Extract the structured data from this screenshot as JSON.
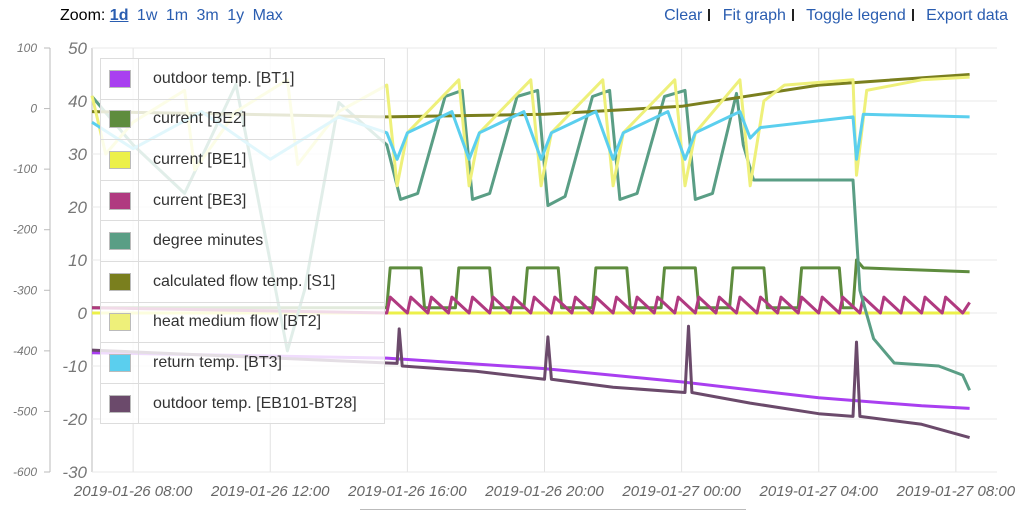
{
  "header": {
    "zoom_label": "Zoom:",
    "zoom_options": [
      "1d",
      "1w",
      "1m",
      "3m",
      "1y",
      "Max"
    ],
    "selected_zoom": "1d",
    "actions": [
      "Clear",
      "Fit graph",
      "Toggle legend",
      "Export data"
    ]
  },
  "chart_data": {
    "type": "line",
    "x_unit": "hours since 2019-01-26 00:00",
    "xlim": [
      6.8,
      33.2
    ],
    "x_ticks": [
      {
        "h": 8,
        "label": "2019-01-26 08:00"
      },
      {
        "h": 12,
        "label": "2019-01-26 12:00"
      },
      {
        "h": 16,
        "label": "2019-01-26 16:00"
      },
      {
        "h": 20,
        "label": "2019-01-26 20:00"
      },
      {
        "h": 24,
        "label": "2019-01-27 00:00"
      },
      {
        "h": 28,
        "label": "2019-01-27 04:00"
      },
      {
        "h": 32,
        "label": "2019-01-27 08:00"
      }
    ],
    "y_left": {
      "ylim": [
        -600,
        100
      ],
      "ticks": [
        "100",
        "0",
        "-100",
        "-200",
        "-300",
        "-400",
        "-500",
        "-600"
      ]
    },
    "y_right": {
      "ylim": [
        -30,
        50
      ],
      "ticks": [
        "50",
        "40",
        "30",
        "20",
        "10",
        "0",
        "-10",
        "-20",
        "-30"
      ]
    },
    "grid": true,
    "legend_placement": "top-left",
    "series": [
      {
        "name": "outdoor temp. [BT1]",
        "color": "#a93ff0",
        "axis": "right",
        "points": [
          [
            6.8,
            -7.5
          ],
          [
            15.4,
            -8.5
          ],
          [
            20,
            -10.5
          ],
          [
            24,
            -13
          ],
          [
            28,
            -16
          ],
          [
            31,
            -17.5
          ],
          [
            32.4,
            -18
          ]
        ]
      },
      {
        "name": "current [BE2]",
        "color": "#5e8c3e",
        "axis": "right",
        "points": [
          [
            6.8,
            1
          ],
          [
            15.4,
            1
          ],
          [
            15.5,
            8.5
          ],
          [
            16.4,
            8.5
          ],
          [
            16.5,
            1
          ],
          [
            17.4,
            1
          ],
          [
            17.5,
            8.5
          ],
          [
            18.4,
            8.5
          ],
          [
            18.5,
            1
          ],
          [
            19.4,
            1
          ],
          [
            19.5,
            8.5
          ],
          [
            20.4,
            8.5
          ],
          [
            20.5,
            1
          ],
          [
            21.4,
            1
          ],
          [
            21.5,
            8.5
          ],
          [
            22.4,
            8.5
          ],
          [
            22.5,
            1
          ],
          [
            23.4,
            1
          ],
          [
            23.5,
            8.5
          ],
          [
            24.4,
            8.5
          ],
          [
            24.5,
            1
          ],
          [
            25.4,
            1
          ],
          [
            25.5,
            8.5
          ],
          [
            26.4,
            8.5
          ],
          [
            26.5,
            1
          ],
          [
            27.4,
            1
          ],
          [
            27.5,
            8.5
          ],
          [
            28.6,
            8.5
          ],
          [
            28.7,
            1
          ],
          [
            29.0,
            1
          ],
          [
            29.1,
            10
          ],
          [
            29.3,
            8.5
          ],
          [
            32.4,
            7.8
          ]
        ]
      },
      {
        "name": "current [BE1]",
        "color": "#ecf04a",
        "axis": "right",
        "points": [
          [
            6.8,
            0
          ],
          [
            32.4,
            0
          ]
        ]
      },
      {
        "name": "current [BE3]",
        "color": "#b03a80",
        "axis": "right",
        "points": [
          [
            6.8,
            1
          ],
          [
            15.4,
            0
          ],
          [
            15.5,
            3
          ],
          [
            16,
            0
          ],
          [
            16.1,
            3
          ],
          [
            16.6,
            0
          ],
          [
            16.7,
            3
          ],
          [
            17.2,
            0
          ],
          [
            17.3,
            3
          ],
          [
            17.8,
            0
          ],
          [
            17.9,
            3
          ],
          [
            18.4,
            0
          ],
          [
            18.5,
            3
          ],
          [
            19,
            0
          ],
          [
            19.1,
            3
          ],
          [
            19.6,
            0
          ],
          [
            19.7,
            3
          ],
          [
            20.2,
            0
          ],
          [
            20.3,
            3
          ],
          [
            20.8,
            0
          ],
          [
            20.9,
            3
          ],
          [
            21.4,
            0
          ],
          [
            21.5,
            3
          ],
          [
            22,
            0
          ],
          [
            22.1,
            3
          ],
          [
            22.6,
            0
          ],
          [
            22.7,
            3
          ],
          [
            23.2,
            0
          ],
          [
            23.3,
            3
          ],
          [
            23.8,
            0
          ],
          [
            23.9,
            3
          ],
          [
            24.4,
            0
          ],
          [
            24.5,
            3
          ],
          [
            25,
            0
          ],
          [
            25.1,
            3
          ],
          [
            25.6,
            0
          ],
          [
            25.7,
            3
          ],
          [
            26.2,
            0
          ],
          [
            26.3,
            3
          ],
          [
            26.8,
            0
          ],
          [
            26.9,
            3
          ],
          [
            27.4,
            0
          ],
          [
            27.5,
            3
          ],
          [
            28,
            0
          ],
          [
            28.1,
            3
          ],
          [
            28.6,
            0
          ],
          [
            28.7,
            3
          ],
          [
            29.2,
            0
          ],
          [
            29.3,
            3
          ],
          [
            29.8,
            0
          ],
          [
            29.9,
            3
          ],
          [
            30.4,
            0
          ],
          [
            30.5,
            3
          ],
          [
            31,
            0
          ],
          [
            31.1,
            3
          ],
          [
            31.6,
            0
          ],
          [
            31.7,
            3
          ],
          [
            32.2,
            0
          ],
          [
            32.4,
            2
          ]
        ]
      },
      {
        "name": "degree minutes",
        "color": "#5a9e85",
        "axis": "left",
        "points": [
          [
            6.8,
            20
          ],
          [
            8,
            -60
          ],
          [
            9.5,
            -140
          ],
          [
            11,
            40
          ],
          [
            12.5,
            -400
          ],
          [
            13,
            -300
          ],
          [
            14,
            10
          ],
          [
            15.4,
            -60
          ],
          [
            15.8,
            -150
          ],
          [
            16.3,
            -140
          ],
          [
            17.1,
            20
          ],
          [
            17.6,
            30
          ],
          [
            17.9,
            -150
          ],
          [
            18.4,
            -140
          ],
          [
            19.2,
            20
          ],
          [
            19.8,
            30
          ],
          [
            20.1,
            -160
          ],
          [
            20.6,
            -145
          ],
          [
            21.4,
            20
          ],
          [
            21.9,
            30
          ],
          [
            22.2,
            -150
          ],
          [
            22.7,
            -140
          ],
          [
            23.5,
            20
          ],
          [
            24.1,
            30
          ],
          [
            24.4,
            -150
          ],
          [
            24.9,
            -140
          ],
          [
            25.6,
            25
          ],
          [
            25.8,
            -60
          ],
          [
            26.1,
            -118
          ],
          [
            29.0,
            -118
          ],
          [
            29.2,
            -300
          ],
          [
            29.6,
            -380
          ],
          [
            30.2,
            -420
          ],
          [
            31.5,
            -425
          ],
          [
            32.2,
            -440
          ],
          [
            32.4,
            -465
          ]
        ]
      },
      {
        "name": "calculated flow temp. [S1]",
        "color": "#7a7f1e",
        "axis": "right",
        "points": [
          [
            6.8,
            38
          ],
          [
            15.4,
            37
          ],
          [
            20,
            37.5
          ],
          [
            24,
            39
          ],
          [
            28,
            43
          ],
          [
            32.4,
            45
          ]
        ]
      },
      {
        "name": "heat medium flow [BT2]",
        "color": "#eef07a",
        "axis": "right",
        "points": [
          [
            6.8,
            41
          ],
          [
            7.2,
            30
          ],
          [
            8,
            36
          ],
          [
            9.5,
            42
          ],
          [
            9.8,
            27
          ],
          [
            11,
            38
          ],
          [
            12.5,
            44
          ],
          [
            12.8,
            28
          ],
          [
            14,
            38
          ],
          [
            15.4,
            43
          ],
          [
            15.7,
            24
          ],
          [
            16,
            34
          ],
          [
            17.5,
            44
          ],
          [
            17.8,
            24
          ],
          [
            18.1,
            34
          ],
          [
            19.6,
            44
          ],
          [
            19.9,
            24
          ],
          [
            20.2,
            34
          ],
          [
            21.7,
            44
          ],
          [
            22,
            24
          ],
          [
            22.3,
            34
          ],
          [
            23.8,
            44
          ],
          [
            24.1,
            24
          ],
          [
            24.4,
            34
          ],
          [
            25.7,
            44
          ],
          [
            26,
            24
          ],
          [
            26.4,
            40
          ],
          [
            27,
            43
          ],
          [
            29,
            44
          ],
          [
            29.1,
            26
          ],
          [
            29.4,
            42
          ],
          [
            31,
            44
          ],
          [
            32.4,
            44.5
          ]
        ]
      },
      {
        "name": "return temp. [BT3]",
        "color": "#5bcfee",
        "axis": "right",
        "points": [
          [
            6.8,
            36
          ],
          [
            8,
            31
          ],
          [
            10,
            38
          ],
          [
            12,
            29
          ],
          [
            14,
            37
          ],
          [
            15.4,
            34
          ],
          [
            15.7,
            29
          ],
          [
            16,
            34
          ],
          [
            17.3,
            38
          ],
          [
            17.8,
            29
          ],
          [
            18.1,
            34
          ],
          [
            19.4,
            38
          ],
          [
            19.9,
            29
          ],
          [
            20.2,
            34
          ],
          [
            21.5,
            38
          ],
          [
            22,
            29
          ],
          [
            22.3,
            34
          ],
          [
            23.6,
            38
          ],
          [
            24.1,
            29
          ],
          [
            24.4,
            34
          ],
          [
            25.7,
            38
          ],
          [
            26,
            33
          ],
          [
            26.3,
            35
          ],
          [
            29,
            37
          ],
          [
            29.1,
            29
          ],
          [
            29.3,
            37.5
          ],
          [
            32.4,
            37
          ]
        ]
      },
      {
        "name": "outdoor temp. [EB101-BT28]",
        "color": "#6b4a6b",
        "axis": "right",
        "points": [
          [
            6.8,
            -7
          ],
          [
            15.7,
            -9.5
          ],
          [
            15.76,
            -3
          ],
          [
            15.85,
            -10
          ],
          [
            18,
            -11
          ],
          [
            20,
            -12.5
          ],
          [
            20.1,
            -4.5
          ],
          [
            20.2,
            -12.5
          ],
          [
            22,
            -14
          ],
          [
            24.1,
            -15
          ],
          [
            24.2,
            -2.5
          ],
          [
            24.3,
            -15
          ],
          [
            26,
            -17
          ],
          [
            28,
            -19
          ],
          [
            29,
            -19.5
          ],
          [
            29.1,
            -5.5
          ],
          [
            29.2,
            -19.5
          ],
          [
            31,
            -21
          ],
          [
            32.4,
            -23.5
          ]
        ]
      }
    ]
  }
}
